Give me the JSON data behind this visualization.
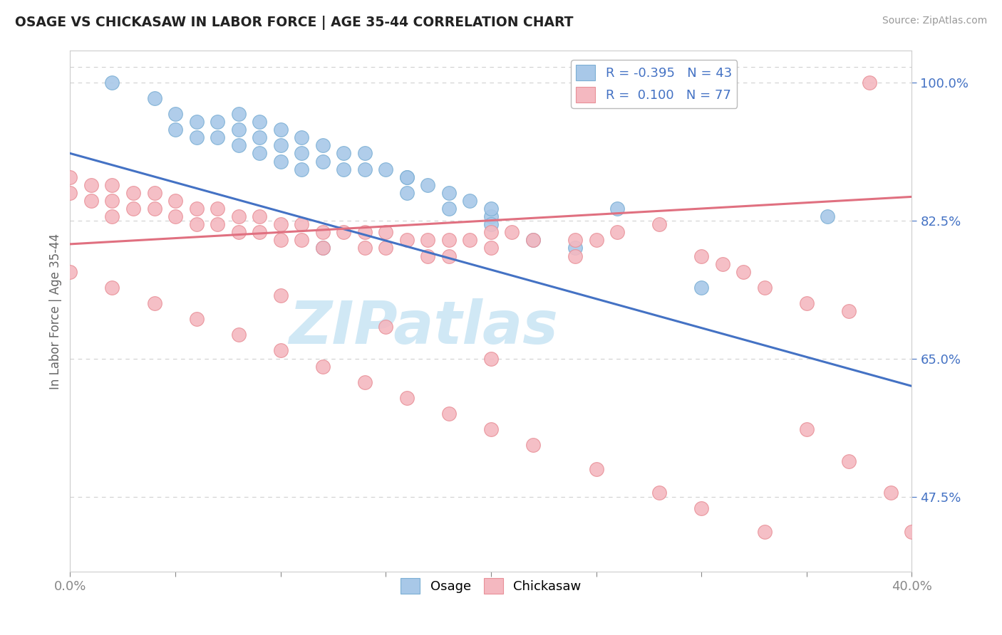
{
  "title": "OSAGE VS CHICKASAW IN LABOR FORCE | AGE 35-44 CORRELATION CHART",
  "source_text": "Source: ZipAtlas.com",
  "ylabel": "In Labor Force | Age 35-44",
  "xlim": [
    0.0,
    0.4
  ],
  "ylim": [
    0.38,
    1.04
  ],
  "xtick_positions": [
    0.0,
    0.05,
    0.1,
    0.15,
    0.2,
    0.25,
    0.3,
    0.35,
    0.4
  ],
  "xticklabels": [
    "0.0%",
    "",
    "",
    "",
    "",
    "",
    "",
    "",
    "40.0%"
  ],
  "ytick_positions": [
    0.475,
    0.65,
    0.825,
    1.0
  ],
  "yticklabels": [
    "47.5%",
    "65.0%",
    "82.5%",
    "100.0%"
  ],
  "blue_color": "#a8c8e8",
  "blue_edge_color": "#7bafd4",
  "pink_color": "#f4b8c0",
  "pink_edge_color": "#e89098",
  "blue_line_color": "#4472c4",
  "pink_line_color": "#e07080",
  "blue_trend_x": [
    0.0,
    0.4
  ],
  "blue_trend_y": [
    0.91,
    0.615
  ],
  "pink_trend_x": [
    0.0,
    0.4
  ],
  "pink_trend_y": [
    0.795,
    0.855
  ],
  "watermark": "ZIPatlas",
  "watermark_color": "#d0e8f5",
  "grid_color": "#d0d0d0",
  "background_color": "#ffffff",
  "blue_x": [
    0.02,
    0.04,
    0.05,
    0.05,
    0.06,
    0.06,
    0.07,
    0.07,
    0.08,
    0.08,
    0.08,
    0.09,
    0.09,
    0.09,
    0.1,
    0.1,
    0.1,
    0.11,
    0.11,
    0.11,
    0.12,
    0.12,
    0.13,
    0.13,
    0.14,
    0.14,
    0.15,
    0.16,
    0.16,
    0.17,
    0.18,
    0.18,
    0.19,
    0.2,
    0.22,
    0.24,
    0.3,
    0.16,
    0.2,
    0.26,
    0.12,
    0.2,
    0.36
  ],
  "blue_y": [
    1.0,
    0.98,
    0.96,
    0.94,
    0.95,
    0.93,
    0.95,
    0.93,
    0.96,
    0.94,
    0.92,
    0.95,
    0.93,
    0.91,
    0.94,
    0.92,
    0.9,
    0.93,
    0.91,
    0.89,
    0.92,
    0.9,
    0.91,
    0.89,
    0.91,
    0.89,
    0.89,
    0.88,
    0.86,
    0.87,
    0.86,
    0.84,
    0.85,
    0.83,
    0.8,
    0.79,
    0.74,
    0.88,
    0.82,
    0.84,
    0.79,
    0.84,
    0.83
  ],
  "pink_x": [
    0.0,
    0.0,
    0.01,
    0.01,
    0.02,
    0.02,
    0.02,
    0.03,
    0.03,
    0.04,
    0.04,
    0.05,
    0.05,
    0.06,
    0.06,
    0.07,
    0.07,
    0.08,
    0.08,
    0.09,
    0.09,
    0.1,
    0.1,
    0.11,
    0.11,
    0.12,
    0.12,
    0.13,
    0.14,
    0.14,
    0.15,
    0.15,
    0.16,
    0.17,
    0.17,
    0.18,
    0.18,
    0.19,
    0.2,
    0.2,
    0.21,
    0.22,
    0.24,
    0.24,
    0.25,
    0.26,
    0.28,
    0.3,
    0.31,
    0.32,
    0.33,
    0.35,
    0.37,
    0.38,
    0.0,
    0.02,
    0.04,
    0.06,
    0.08,
    0.1,
    0.12,
    0.14,
    0.16,
    0.18,
    0.2,
    0.22,
    0.25,
    0.28,
    0.3,
    0.33,
    0.35,
    0.37,
    0.39,
    0.1,
    0.15,
    0.2,
    0.4
  ],
  "pink_y": [
    0.88,
    0.86,
    0.87,
    0.85,
    0.87,
    0.85,
    0.83,
    0.86,
    0.84,
    0.86,
    0.84,
    0.85,
    0.83,
    0.84,
    0.82,
    0.84,
    0.82,
    0.83,
    0.81,
    0.83,
    0.81,
    0.82,
    0.8,
    0.82,
    0.8,
    0.81,
    0.79,
    0.81,
    0.81,
    0.79,
    0.81,
    0.79,
    0.8,
    0.8,
    0.78,
    0.8,
    0.78,
    0.8,
    0.81,
    0.79,
    0.81,
    0.8,
    0.8,
    0.78,
    0.8,
    0.81,
    0.82,
    0.78,
    0.77,
    0.76,
    0.74,
    0.72,
    0.71,
    1.0,
    0.76,
    0.74,
    0.72,
    0.7,
    0.68,
    0.66,
    0.64,
    0.62,
    0.6,
    0.58,
    0.56,
    0.54,
    0.51,
    0.48,
    0.46,
    0.43,
    0.56,
    0.52,
    0.48,
    0.73,
    0.69,
    0.65,
    0.43
  ]
}
